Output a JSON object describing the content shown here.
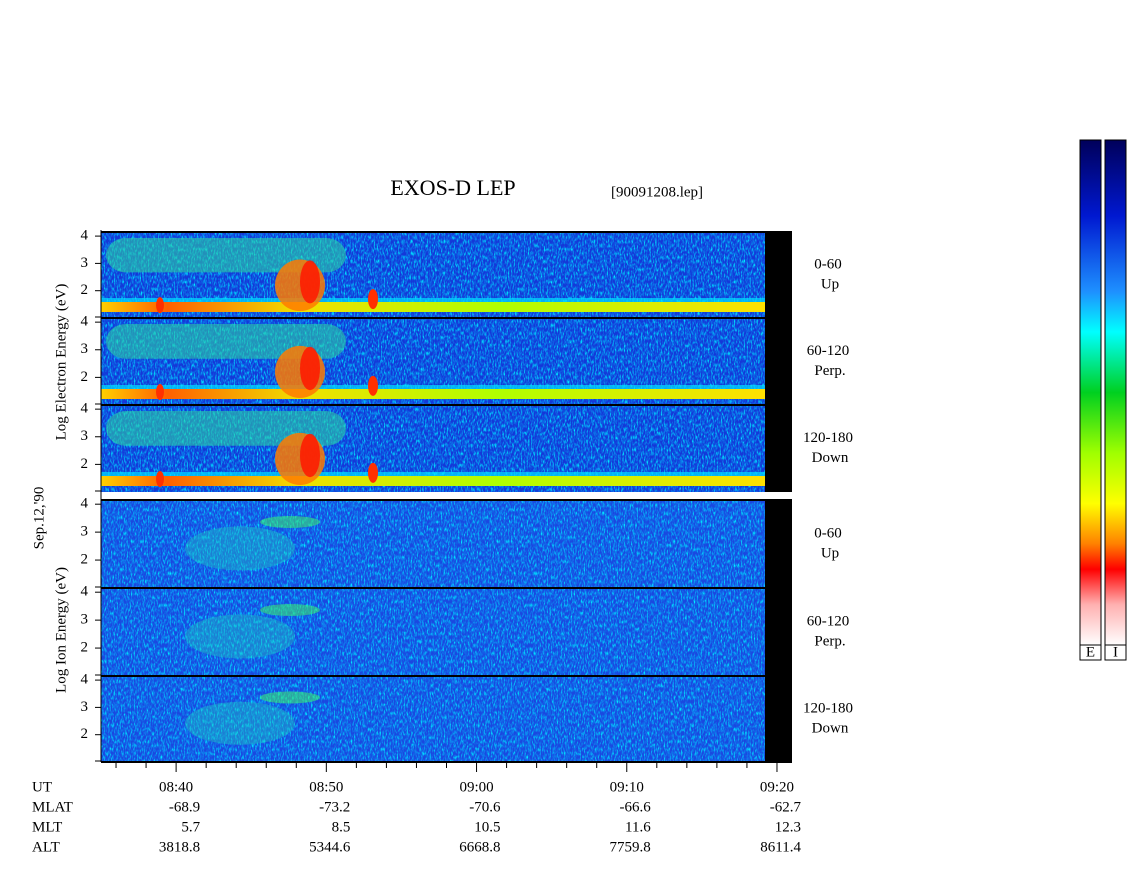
{
  "title": "EXOS-D LEP",
  "file_label": "[90091208.lep]",
  "date_label": "Sep.12,'90",
  "electron_axis_label": "Log Electron Energy (eV)",
  "ion_axis_label": "Log Ion Energy (eV)",
  "panels": [
    {
      "pitch": "0-60",
      "direction": "Up"
    },
    {
      "pitch": "60-120",
      "direction": "Perp."
    },
    {
      "pitch": "120-180",
      "direction": "Down"
    },
    {
      "pitch": "0-60",
      "direction": "Up"
    },
    {
      "pitch": "60-120",
      "direction": "Perp."
    },
    {
      "pitch": "120-180",
      "direction": "Down"
    }
  ],
  "ylim": [
    1,
    4.15
  ],
  "yticks": [
    2,
    3,
    4
  ],
  "xlim": [
    515,
    561
  ],
  "xticks": [
    {
      "value": 520,
      "label": "08:40"
    },
    {
      "value": 530,
      "label": "08:50"
    },
    {
      "value": 540,
      "label": "09:00"
    },
    {
      "value": 550,
      "label": "09:10"
    },
    {
      "value": 560,
      "label": "09:20"
    }
  ],
  "xminor": [
    516,
    518,
    522,
    524,
    526,
    528,
    532,
    534,
    536,
    538,
    542,
    544,
    546,
    548,
    552,
    554,
    556,
    558
  ],
  "orbit_table": {
    "row_labels": [
      "UT",
      "MLAT",
      "MLT",
      "ALT"
    ],
    "rows": [
      [
        "-68.9",
        "-73.2",
        "-70.6",
        "-66.6",
        "-62.7"
      ],
      [
        "5.7",
        "8.5",
        "10.5",
        "11.6",
        "12.3"
      ],
      [
        "3818.8",
        "5344.6",
        "6668.8",
        "7759.8",
        "8611.4"
      ]
    ]
  },
  "colorbar_labels": [
    "E",
    "I"
  ]
}
